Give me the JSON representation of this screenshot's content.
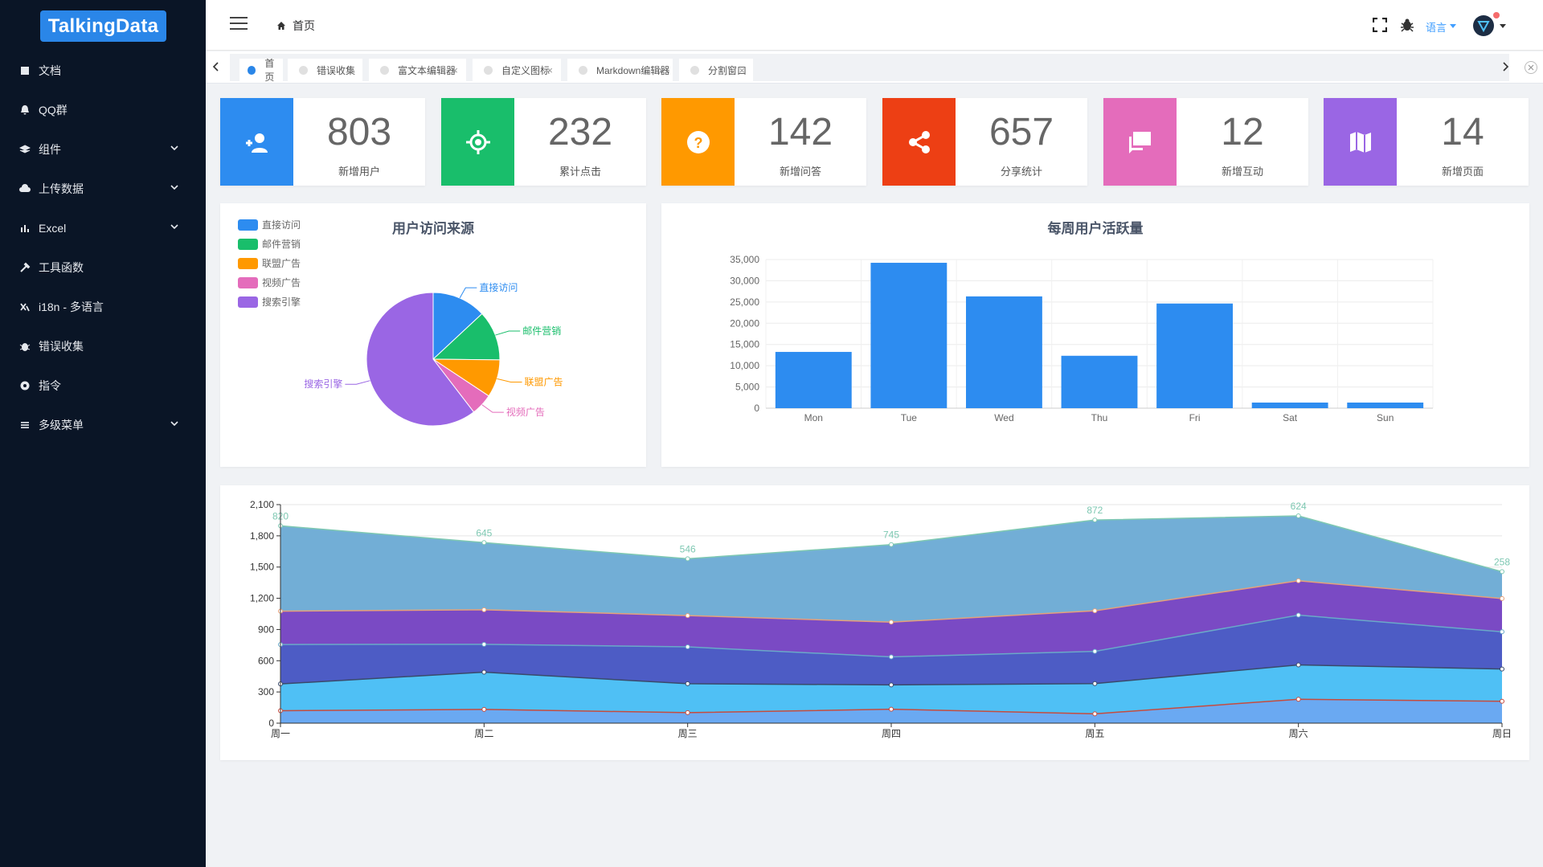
{
  "app": {
    "logo_text": "TalkingData"
  },
  "sidebar": {
    "items": [
      {
        "label": "文档",
        "icon": "book-icon",
        "arrow": false
      },
      {
        "label": "QQ群",
        "icon": "bell-icon",
        "arrow": false
      },
      {
        "label": "组件",
        "icon": "layers-icon",
        "arrow": true
      },
      {
        "label": "上传数据",
        "icon": "cloud-upload-icon",
        "arrow": true
      },
      {
        "label": "Excel",
        "icon": "bar-chart-icon",
        "arrow": true
      },
      {
        "label": "工具函数",
        "icon": "hammer-icon",
        "arrow": false
      },
      {
        "label": "i18n - 多语言",
        "icon": "translate-icon",
        "arrow": false
      },
      {
        "label": "错误收集",
        "icon": "bug-icon",
        "arrow": false
      },
      {
        "label": "指令",
        "icon": "directive-icon",
        "arrow": false
      },
      {
        "label": "多级菜单",
        "icon": "menu-icon",
        "arrow": true
      }
    ]
  },
  "header": {
    "breadcrumb": "首页",
    "language_label": "语言"
  },
  "tabs": [
    {
      "label": "首页",
      "active": true
    },
    {
      "label": "错误收集",
      "active": false
    },
    {
      "label": "富文本编辑器",
      "active": false
    },
    {
      "label": "自定义图标",
      "active": false
    },
    {
      "label": "Markdown编辑器",
      "active": false
    },
    {
      "label": "分割窗口",
      "active": false
    }
  ],
  "stats": [
    {
      "value": "803",
      "label": "新增用户",
      "color": "#2d8cf0",
      "icon": "add-user-icon"
    },
    {
      "value": "232",
      "label": "累计点击",
      "color": "#19be6b",
      "icon": "target-icon"
    },
    {
      "value": "142",
      "label": "新增问答",
      "color": "#ff9900",
      "icon": "help-icon"
    },
    {
      "value": "657",
      "label": "分享统计",
      "color": "#ed3f14",
      "icon": "share-icon"
    },
    {
      "value": "12",
      "label": "新增互动",
      "color": "#e46cbb",
      "icon": "chat-icon"
    },
    {
      "value": "14",
      "label": "新增页面",
      "color": "#9a66e4",
      "icon": "map-icon"
    }
  ],
  "chart_data": [
    {
      "type": "pie",
      "title": "用户访问来源",
      "legend_position": "top-left",
      "categories": [
        "直接访问",
        "邮件营销",
        "联盟广告",
        "视频广告",
        "搜索引擎"
      ],
      "values": [
        335,
        310,
        234,
        135,
        1548
      ],
      "colors": [
        "#2d8cf0",
        "#19be6b",
        "#ff9900",
        "#e46cbb",
        "#9a66e4"
      ]
    },
    {
      "type": "bar",
      "title": "每周用户活跃量",
      "categories": [
        "Mon",
        "Tue",
        "Wed",
        "Thu",
        "Fri",
        "Sat",
        "Sun"
      ],
      "values": [
        13253,
        34235,
        26321,
        12340,
        24643,
        1322,
        1324
      ],
      "yticks": [
        "0",
        "5,000",
        "10,000",
        "15,000",
        "20,000",
        "25,000",
        "30,000",
        "35,000"
      ],
      "ylim": [
        0,
        35000
      ],
      "grid": true,
      "color": "#2d8cf0"
    },
    {
      "type": "area",
      "stacked": true,
      "categories": [
        "周一",
        "周二",
        "周三",
        "周四",
        "周五",
        "周六",
        "周日"
      ],
      "yticks": [
        "0",
        "300",
        "600",
        "900",
        "1,200",
        "1,500",
        "1,800",
        "2,100"
      ],
      "ylim": [
        0,
        2100
      ],
      "grid": true,
      "series": [
        {
          "values": [
            120,
            132,
            101,
            134,
            90,
            230,
            210
          ],
          "fill": "#6aa9f2",
          "line": "#c64b3e"
        },
        {
          "values": [
            257,
            358,
            278,
            234,
            290,
            330,
            310
          ],
          "fill": "#4fc0f5",
          "line": "#3a4a6b"
        },
        {
          "values": [
            379,
            268,
            354,
            269,
            310,
            478,
            358
          ],
          "fill": "#4d5cc5",
          "line": "#6aa9c8"
        },
        {
          "values": [
            320,
            332,
            301,
            334,
            390,
            330,
            320
          ],
          "fill": "#7a4ac4",
          "line": "#e6a07a"
        },
        {
          "values": [
            820,
            645,
            546,
            745,
            872,
            624,
            258
          ],
          "fill": "#72aed6",
          "line": "#7ec8b2"
        }
      ],
      "top_labels": [
        "820",
        "645",
        "546",
        "745",
        "872",
        "624",
        "258"
      ]
    }
  ]
}
